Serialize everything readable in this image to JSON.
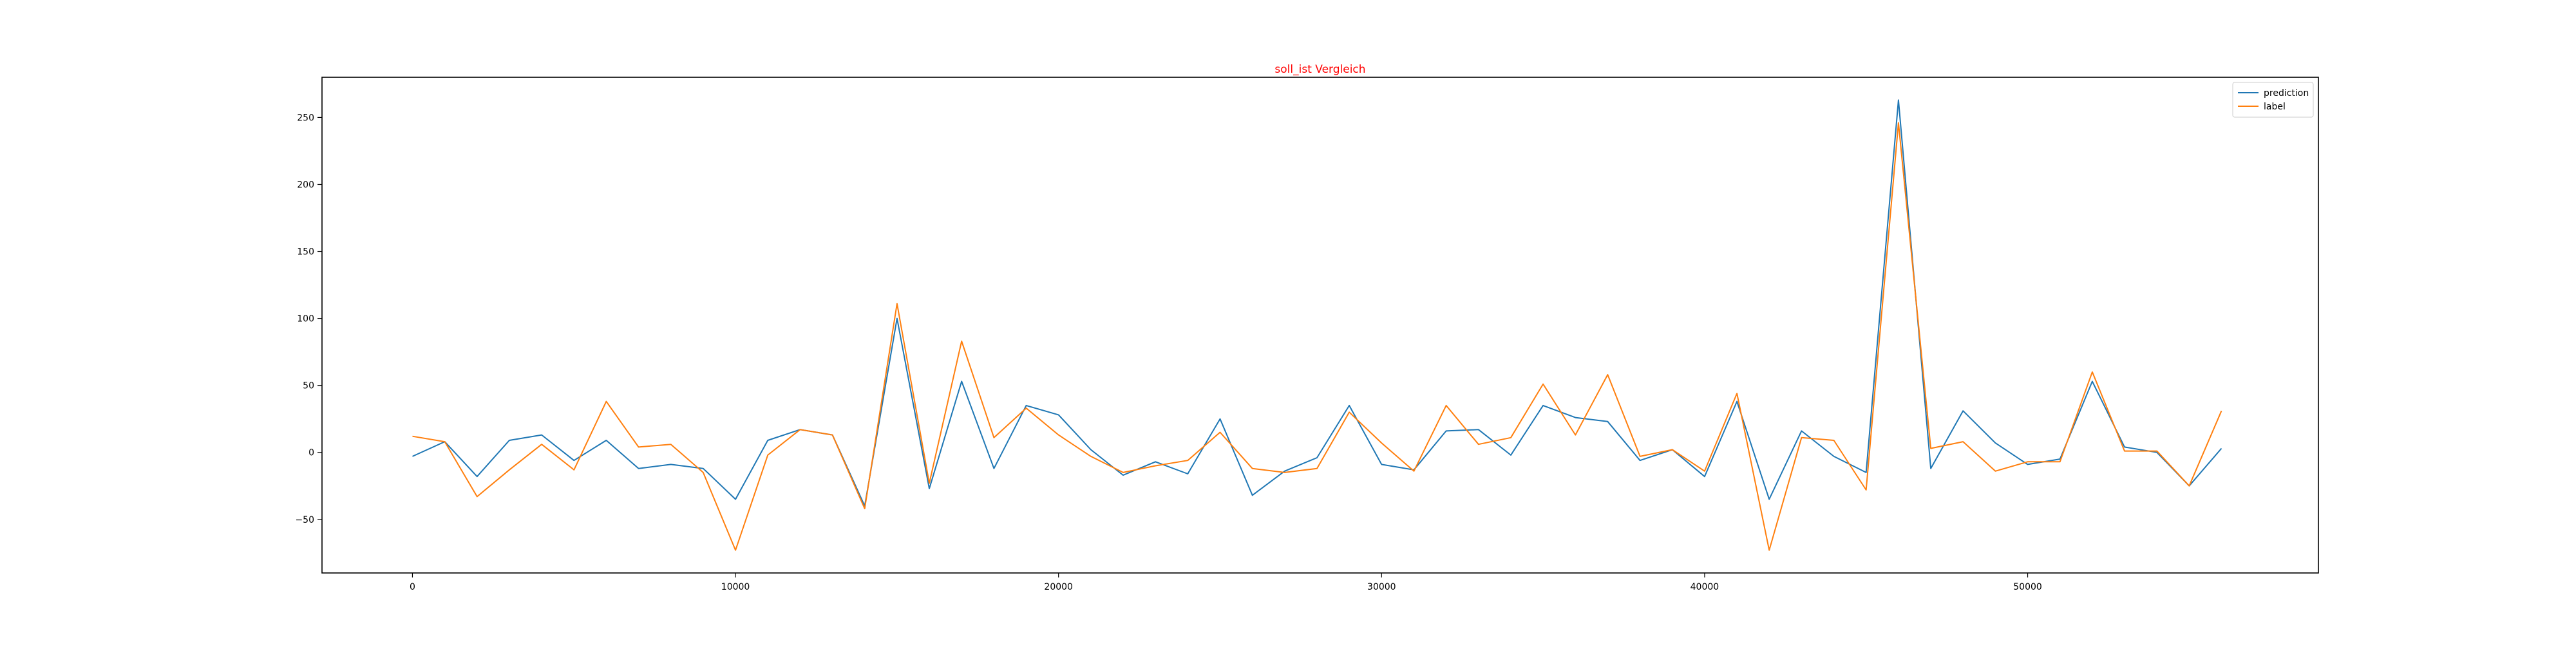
{
  "chart_data": {
    "type": "line",
    "title": "soll_ist Vergleich",
    "title_color": "#ff0000",
    "xlabel": "",
    "ylabel": "",
    "xlim": [
      -2800,
      59000
    ],
    "ylim": [
      -90,
      280
    ],
    "grid": false,
    "legend_position": "top-right",
    "x_ticks": [
      0,
      10000,
      20000,
      30000,
      40000,
      50000
    ],
    "x_tick_labels": [
      "0",
      "10000",
      "20000",
      "30000",
      "40000",
      "50000"
    ],
    "y_ticks": [
      -50,
      0,
      50,
      100,
      150,
      200,
      250
    ],
    "y_tick_labels": [
      "−50",
      "0",
      "50",
      "100",
      "150",
      "200",
      "250"
    ],
    "x": [
      0,
      1000,
      2000,
      3000,
      4000,
      5000,
      6000,
      7000,
      8000,
      9000,
      10000,
      11000,
      12000,
      13000,
      14000,
      15000,
      16000,
      17000,
      18000,
      19000,
      20000,
      21000,
      22000,
      23000,
      24000,
      25000,
      26000,
      27000,
      28000,
      29000,
      30000,
      31000,
      32000,
      33000,
      34000,
      35000,
      36000,
      37000,
      38000,
      39000,
      40000,
      41000,
      42000,
      43000,
      44000,
      45000,
      46000,
      47000,
      48000,
      49000,
      50000,
      51000,
      52000,
      53000,
      54000,
      55000,
      56000
    ],
    "series": [
      {
        "name": "prediction",
        "color": "#1f77b4",
        "values": [
          -3,
          8,
          -18,
          9,
          13,
          -6,
          9,
          -12,
          -9,
          -12,
          -35,
          9,
          17,
          13,
          -40,
          100,
          -27,
          53,
          -12,
          35,
          28,
          2,
          -17,
          -7,
          -16,
          25,
          -32,
          -14,
          -4,
          35,
          -9,
          -13,
          16,
          17,
          -2,
          35,
          26,
          23,
          -6,
          2,
          -18,
          38,
          -35,
          16,
          -3,
          -15,
          263,
          -12,
          31,
          7,
          -9,
          -5,
          53,
          4,
          0,
          -25,
          3
        ]
      },
      {
        "name": "label",
        "color": "#ff7f0e",
        "values": [
          12,
          8,
          -33,
          -13,
          6,
          -13,
          38,
          4,
          6,
          -15,
          -73,
          -2,
          17,
          13,
          -42,
          111,
          -23,
          83,
          11,
          33,
          13,
          -3,
          -15,
          -10,
          -6,
          15,
          -12,
          -15,
          -12,
          30,
          7,
          -14,
          35,
          6,
          11,
          51,
          13,
          58,
          -3,
          2,
          -14,
          44,
          -73,
          11,
          9,
          -28,
          246,
          3,
          8,
          -14,
          -7,
          -7,
          60,
          1,
          1,
          -25,
          31
        ]
      }
    ]
  }
}
